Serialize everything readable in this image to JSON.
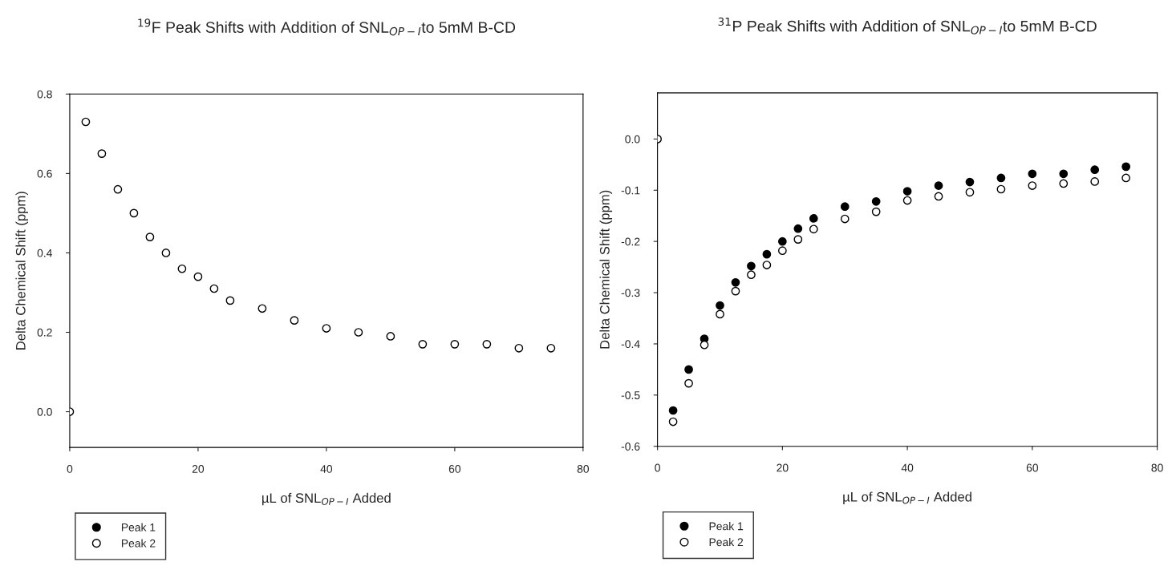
{
  "chart_data": [
    {
      "type": "scatter",
      "title": "$^{19}$F Peak Shifts with Addition of SNL$_{OP−I}$to 5mM B-CD",
      "xlabel": "µL of SNL$_{OP−I}$ Added",
      "ylabel": "Delta Chemical Shift (ppm)",
      "x": [
        0,
        2.5,
        5,
        7.5,
        10,
        12.5,
        15,
        17.5,
        20,
        22.5,
        25,
        30,
        35,
        40,
        45,
        50,
        55,
        60,
        65,
        70,
        75
      ],
      "series": [
        {
          "name": "Peak 1",
          "color": "#000000",
          "values": [
            null,
            null,
            null,
            null,
            null,
            null,
            null,
            null,
            null,
            null,
            null,
            null,
            null,
            null,
            null,
            null,
            null,
            null,
            null,
            null,
            null
          ]
        },
        {
          "name": "Peak 2",
          "color": "#ffffff",
          "values": [
            0,
            0.73,
            0.65,
            0.56,
            0.5,
            0.44,
            0.4,
            0.36,
            0.34,
            0.31,
            0.28,
            0.26,
            0.23,
            0.21,
            0.2,
            0.19,
            0.17,
            0.17,
            0.17,
            0.16,
            0.16
          ]
        }
      ],
      "xlim": [
        0,
        80
      ],
      "xticks": [
        0,
        20,
        40,
        60,
        80
      ],
      "ylim": [
        -0.09,
        0.8
      ],
      "yticks": [
        {
          "value": 0,
          "label": "0.0"
        },
        {
          "value": 0.2,
          "label": "0.2"
        },
        {
          "value": 0.4,
          "label": "0.4"
        },
        {
          "value": 0.6,
          "label": "0.6"
        },
        {
          "value": 0.8,
          "label": "0.8"
        }
      ],
      "marker": "circle",
      "legend": "bottom left",
      "grid": false
    },
    {
      "type": "scatter",
      "title": "$^{31}$P Peak Shifts with Addition of SNL$_{OP−I}$to 5mM B-CD",
      "xlabel": "µL of SNL$_{OP−I}$ Added",
      "ylabel": "Delta Chemical Shift (ppm)",
      "x": [
        0,
        2.5,
        5,
        7.5,
        10,
        12.5,
        15,
        17.5,
        20,
        22.5,
        25,
        30,
        35,
        40,
        45,
        50,
        55,
        60,
        65,
        70,
        75
      ],
      "series": [
        {
          "name": "Peak 1",
          "color": "#000000",
          "values": [
            null,
            -0.53,
            -0.45,
            -0.39,
            -0.325,
            -0.28,
            -0.248,
            -0.225,
            -0.2,
            -0.175,
            -0.155,
            -0.132,
            -0.122,
            -0.102,
            -0.091,
            -0.084,
            -0.076,
            -0.068,
            -0.068,
            -0.06,
            -0.054
          ]
        },
        {
          "name": "Peak 2",
          "color": "#ffffff",
          "values": [
            0,
            -0.552,
            -0.477,
            -0.402,
            -0.342,
            -0.297,
            -0.265,
            -0.246,
            -0.218,
            -0.196,
            -0.176,
            -0.156,
            -0.142,
            -0.12,
            -0.112,
            -0.104,
            -0.098,
            -0.091,
            -0.087,
            -0.083,
            -0.076
          ]
        }
      ],
      "xlim": [
        0,
        80
      ],
      "xticks": [
        0,
        20,
        40,
        60,
        80
      ],
      "ylim": [
        -0.6,
        0.09
      ],
      "yticks": [
        {
          "value": -0.6,
          "label": "-0.6"
        },
        {
          "value": -0.5,
          "label": "-0.5"
        },
        {
          "value": -0.4,
          "label": "-0.4"
        },
        {
          "value": -0.3,
          "label": "-0.3"
        },
        {
          "value": -0.2,
          "label": "-0.2"
        },
        {
          "value": -0.1,
          "label": "-0.1"
        },
        {
          "value": 0,
          "label": "0.0"
        }
      ],
      "marker": "circle",
      "legend": "bottom left",
      "grid": false
    }
  ]
}
